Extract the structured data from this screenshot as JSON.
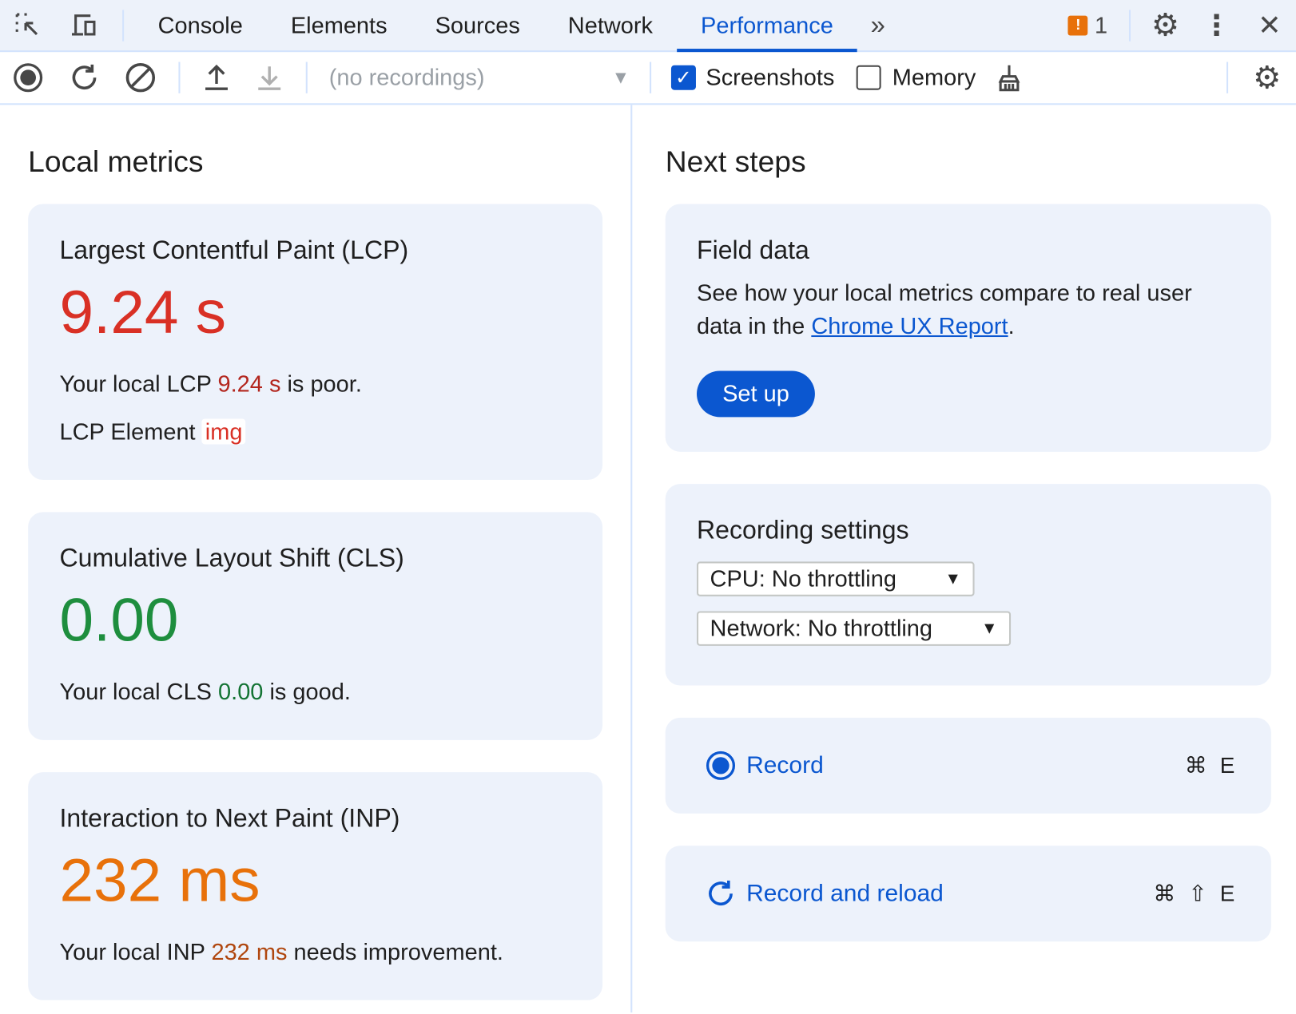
{
  "tabs": [
    "Console",
    "Elements",
    "Sources",
    "Network",
    "Performance"
  ],
  "active_tab": "Performance",
  "issues_count": "1",
  "toolbar": {
    "recordings_placeholder": "(no recordings)",
    "screenshots_label": "Screenshots",
    "screenshots_checked": true,
    "memory_label": "Memory",
    "memory_checked": false
  },
  "left": {
    "title": "Local metrics",
    "lcp": {
      "title": "Largest Contentful Paint (LCP)",
      "value": "9.24 s",
      "desc_pre": "Your local LCP ",
      "desc_val": "9.24 s",
      "desc_post": " is poor.",
      "element_label": "LCP Element",
      "element_value": "img"
    },
    "cls": {
      "title": "Cumulative Layout Shift (CLS)",
      "value": "0.00",
      "desc_pre": "Your local CLS ",
      "desc_val": "0.00",
      "desc_post": " is good."
    },
    "inp": {
      "title": "Interaction to Next Paint (INP)",
      "value": "232 ms",
      "desc_pre": "Your local INP ",
      "desc_val": "232 ms",
      "desc_post": " needs improvement."
    }
  },
  "right": {
    "title": "Next steps",
    "field": {
      "title": "Field data",
      "desc_pre": "See how your local metrics compare to real user data in the ",
      "link": "Chrome UX Report",
      "desc_post": ".",
      "button": "Set up"
    },
    "settings": {
      "title": "Recording settings",
      "cpu": "CPU: No throttling",
      "network": "Network: No throttling"
    },
    "record": {
      "label": "Record",
      "shortcut": "⌘ E"
    },
    "reload": {
      "label": "Record and reload",
      "shortcut": "⌘ ⇧ E"
    }
  },
  "colors": {
    "accent": "#0b57d0",
    "poor": "#d93025",
    "good": "#1e8e3e",
    "needs_improvement": "#e8710a"
  }
}
